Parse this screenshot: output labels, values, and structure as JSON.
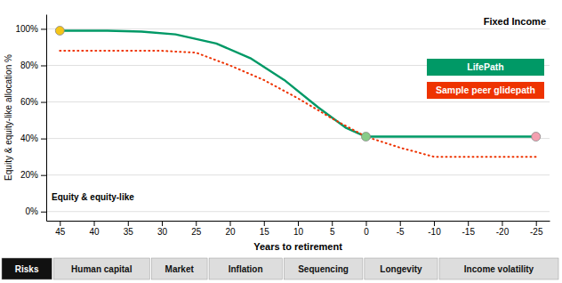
{
  "chart_data": {
    "type": "line",
    "xlabel": "Years to retirement",
    "ylabel": "Equity & equity-like allocation %",
    "xlim": [
      47,
      -27
    ],
    "ylim": [
      -5,
      108
    ],
    "xticks": [
      45,
      40,
      35,
      30,
      25,
      20,
      15,
      10,
      5,
      0,
      -5,
      -10,
      -15,
      -20,
      -25
    ],
    "yticks": [
      {
        "value": 0,
        "label": "0%"
      },
      {
        "value": 20,
        "label": "20%"
      },
      {
        "value": 40,
        "label": "40%"
      },
      {
        "value": 60,
        "label": "60%"
      },
      {
        "value": 80,
        "label": "80%"
      },
      {
        "value": 100,
        "label": "100%"
      }
    ],
    "grid": true,
    "legend": "right",
    "annotations": [
      "Fixed Income",
      "Equity & equity-like"
    ],
    "footer": [
      "Risks",
      "Human capital",
      "Market",
      "Inflation",
      "Sequencing",
      "Longevity",
      "Income volatility"
    ],
    "series": [
      {
        "name": "LifePath",
        "type": "line",
        "color": "#009966",
        "line_style": "solid",
        "x": [
          45,
          42,
          38,
          33,
          28,
          22,
          17,
          12,
          7,
          3,
          0,
          -5,
          -10,
          -15,
          -20,
          -25
        ],
        "values": [
          99,
          99,
          99,
          98.5,
          97,
          92,
          84,
          72,
          57,
          46,
          41,
          41,
          41,
          41,
          41,
          41
        ]
      },
      {
        "name": "Sample peer glidepath",
        "type": "line",
        "color": "#EE3300",
        "line_style": "dotted",
        "x": [
          45,
          40,
          35,
          30,
          25,
          20,
          15,
          10,
          5,
          0,
          -5,
          -10,
          -15,
          -20,
          -25
        ],
        "values": [
          88,
          88,
          88,
          88,
          87,
          80,
          72,
          62,
          51,
          41,
          35,
          30,
          30,
          30,
          30
        ]
      },
      {
        "type": "scatter",
        "marker": "circle",
        "colors": [
          "#F5C518",
          "#88CC88",
          "#F4A0B0"
        ],
        "x": [
          45,
          0,
          -25
        ],
        "values": [
          99,
          41,
          41
        ]
      }
    ]
  }
}
